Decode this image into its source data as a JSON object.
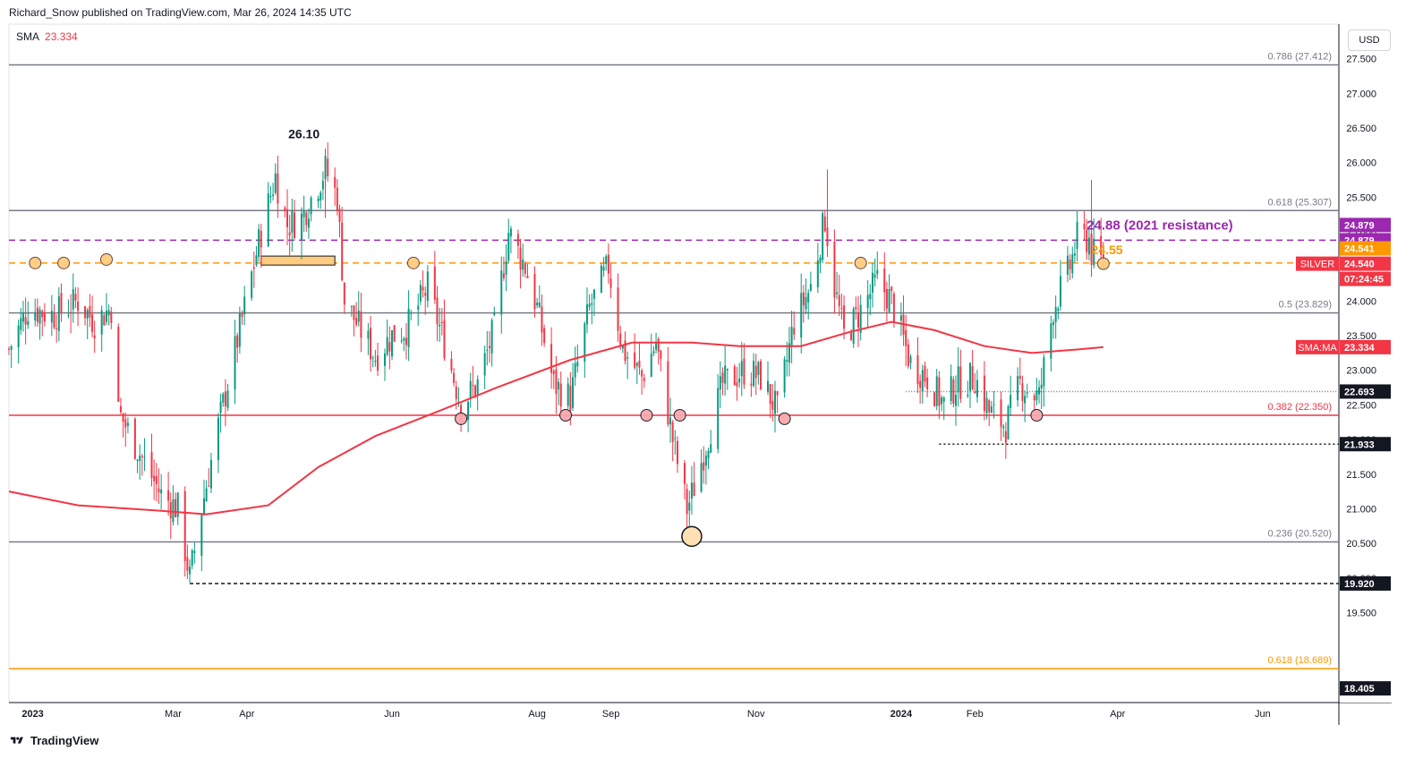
{
  "header": {
    "attribution": "Richard_Snow published on TradingView.com, Mar 26, 2024 14:35 UTC"
  },
  "indicator": {
    "name": "SMA",
    "value": "23.334"
  },
  "currency": "USD",
  "footer": {
    "brand": "TradingView"
  },
  "colors": {
    "up": "#089981",
    "down": "#f23645",
    "sma": "#f23645",
    "purple": "#9c27b0",
    "orange": "#ff9800",
    "grey": "#787b86",
    "darkline": "#131722"
  },
  "chart_data": {
    "type": "candlestick",
    "symbol": "SILVER",
    "ylim": [
      18.2,
      28.0
    ],
    "yticks": [
      "19.500",
      "20.000",
      "20.500",
      "21.000",
      "21.500",
      "22.000",
      "22.500",
      "23.000",
      "23.500",
      "24.000",
      "24.500",
      "25.000",
      "25.500",
      "26.000",
      "26.500",
      "27.000",
      "27.500"
    ],
    "xlim": [
      "2022-12-22",
      "2024-07-03"
    ],
    "xticks": [
      {
        "date": "2023-01-01",
        "label": "2023",
        "bold": true
      },
      {
        "date": "2023-03-01",
        "label": "Mar"
      },
      {
        "date": "2023-04-01",
        "label": "Apr"
      },
      {
        "date": "2023-06-01",
        "label": "Jun"
      },
      {
        "date": "2023-08-01",
        "label": "Aug"
      },
      {
        "date": "2023-09-01",
        "label": "Sep"
      },
      {
        "date": "2023-11-01",
        "label": "Nov"
      },
      {
        "date": "2024-01-01",
        "label": "2024",
        "bold": true
      },
      {
        "date": "2024-02-01",
        "label": "Feb"
      },
      {
        "date": "2024-04-01",
        "label": "Apr"
      },
      {
        "date": "2024-06-01",
        "label": "Jun"
      }
    ],
    "price_path": [
      [
        "2022-12-22",
        23.3
      ],
      [
        "2022-12-30",
        23.9
      ],
      [
        "2023-01-10",
        23.8
      ],
      [
        "2023-01-20",
        24.0
      ],
      [
        "2023-01-27",
        23.7
      ],
      [
        "2023-02-03",
        23.9
      ],
      [
        "2023-02-06",
        22.4
      ],
      [
        "2023-02-15",
        21.8
      ],
      [
        "2023-02-24",
        21.2
      ],
      [
        "2023-03-03",
        21.0
      ],
      [
        "2023-03-08",
        20.0
      ],
      [
        "2023-03-13",
        21.0
      ],
      [
        "2023-03-20",
        22.2
      ],
      [
        "2023-03-31",
        23.9
      ],
      [
        "2023-04-07",
        25.0
      ],
      [
        "2023-04-13",
        25.8
      ],
      [
        "2023-04-18",
        25.1
      ],
      [
        "2023-04-24",
        25.2
      ],
      [
        "2023-05-04",
        25.9
      ],
      [
        "2023-05-09",
        25.5
      ],
      [
        "2023-05-12",
        24.0
      ],
      [
        "2023-05-25",
        23.2
      ],
      [
        "2023-06-01",
        23.5
      ],
      [
        "2023-06-07",
        23.6
      ],
      [
        "2023-06-16",
        24.2
      ],
      [
        "2023-06-23",
        23.4
      ],
      [
        "2023-06-30",
        22.5
      ],
      [
        "2023-07-07",
        22.8
      ],
      [
        "2023-07-14",
        23.6
      ],
      [
        "2023-07-20",
        25.0
      ],
      [
        "2023-07-27",
        24.5
      ],
      [
        "2023-08-01",
        23.9
      ],
      [
        "2023-08-08",
        22.8
      ],
      [
        "2023-08-15",
        22.6
      ],
      [
        "2023-08-23",
        23.9
      ],
      [
        "2023-08-31",
        24.5
      ],
      [
        "2023-09-06",
        23.3
      ],
      [
        "2023-09-14",
        22.9
      ],
      [
        "2023-09-20",
        23.4
      ],
      [
        "2023-09-27",
        22.0
      ],
      [
        "2023-10-03",
        21.0
      ],
      [
        "2023-10-05",
        21.2
      ],
      [
        "2023-10-10",
        21.8
      ],
      [
        "2023-10-18",
        22.8
      ],
      [
        "2023-10-27",
        23.0
      ],
      [
        "2023-11-03",
        22.9
      ],
      [
        "2023-11-10",
        22.4
      ],
      [
        "2023-11-17",
        23.7
      ],
      [
        "2023-11-24",
        24.2
      ],
      [
        "2023-11-30",
        25.2
      ],
      [
        "2023-12-04",
        24.2
      ],
      [
        "2023-12-08",
        23.5
      ],
      [
        "2023-12-14",
        23.8
      ],
      [
        "2023-12-22",
        24.3
      ],
      [
        "2023-12-28",
        24.0
      ],
      [
        "2024-01-05",
        23.1
      ],
      [
        "2024-01-12",
        22.9
      ],
      [
        "2024-01-19",
        22.5
      ],
      [
        "2024-01-24",
        22.8
      ],
      [
        "2024-02-01",
        22.9
      ],
      [
        "2024-02-07",
        22.4
      ],
      [
        "2024-02-14",
        22.2
      ],
      [
        "2024-02-20",
        22.8
      ],
      [
        "2024-02-28",
        22.6
      ],
      [
        "2024-03-05",
        23.9
      ],
      [
        "2024-03-12",
        24.5
      ],
      [
        "2024-03-15",
        24.9
      ],
      [
        "2024-03-20",
        24.9
      ],
      [
        "2024-03-21",
        24.7
      ],
      [
        "2024-03-26",
        24.54
      ]
    ],
    "highlight_candles": [
      {
        "date": "2023-04-14",
        "high": 26.1
      },
      {
        "date": "2023-05-04",
        "high": 26.1
      },
      {
        "date": "2023-12-01",
        "high": 25.9
      },
      {
        "date": "2024-03-21",
        "high": 25.75
      }
    ],
    "sma_path": [
      [
        "2022-12-22",
        21.25
      ],
      [
        "2023-01-20",
        21.05
      ],
      [
        "2023-02-20",
        20.98
      ],
      [
        "2023-03-15",
        20.92
      ],
      [
        "2023-04-10",
        21.05
      ],
      [
        "2023-05-01",
        21.6
      ],
      [
        "2023-05-25",
        22.05
      ],
      [
        "2023-06-20",
        22.4
      ],
      [
        "2023-07-15",
        22.75
      ],
      [
        "2023-08-15",
        23.15
      ],
      [
        "2023-09-10",
        23.4
      ],
      [
        "2023-10-05",
        23.4
      ],
      [
        "2023-10-25",
        23.35
      ],
      [
        "2023-11-20",
        23.35
      ],
      [
        "2023-12-10",
        23.55
      ],
      [
        "2023-12-28",
        23.7
      ],
      [
        "2024-01-15",
        23.58
      ],
      [
        "2024-02-05",
        23.35
      ],
      [
        "2024-02-25",
        23.25
      ],
      [
        "2024-03-15",
        23.3
      ],
      [
        "2024-03-26",
        23.334
      ]
    ],
    "horizontal_lines": [
      {
        "price": 27.412,
        "style": "solid",
        "color": "#787b86",
        "label": "0.786 (27.412)"
      },
      {
        "price": 25.307,
        "style": "solid",
        "color": "#787b86",
        "label": "0.618 (25.307)"
      },
      {
        "price": 23.829,
        "style": "solid",
        "color": "#787b86",
        "label": "0.5 (23.829)"
      },
      {
        "price": 22.35,
        "style": "solid",
        "color": "#f23645",
        "label": "0.382 (22.350)"
      },
      {
        "price": 20.52,
        "style": "solid",
        "color": "#787b86",
        "label": "0.236 (20.520)"
      },
      {
        "price": 18.689,
        "style": "solid",
        "color": "#ff9800",
        "label": "0.618 (18.689)"
      },
      {
        "price": 24.879,
        "style": "dashed",
        "color": "#9c27b0",
        "label": ""
      },
      {
        "price": 24.55,
        "style": "dashed",
        "color": "#ff9800",
        "label": ""
      }
    ],
    "dotted_levels": [
      {
        "price": 22.693,
        "from": "2024-01-03",
        "color": "#787b86"
      },
      {
        "price": 21.933,
        "from": "2024-01-17",
        "color": "#131722"
      },
      {
        "price": 19.92,
        "from": "2023-03-08",
        "color": "#131722"
      }
    ],
    "annotations": [
      {
        "text": "26.10",
        "date": "2023-04-25",
        "price": 26.35,
        "color": "#131722"
      },
      {
        "text": "24.88 (2021 resistance)",
        "date": "2024-03-19",
        "price": 25.03,
        "color": "#9c27b0"
      },
      {
        "text": "24.55",
        "date": "2024-03-21",
        "price": 24.68,
        "color": "#ff9800"
      }
    ],
    "zone": {
      "from": "2023-04-07",
      "to": "2023-05-08",
      "low": 24.52,
      "high": 24.65
    },
    "markers": [
      {
        "date": "2023-01-02",
        "price": 24.55,
        "type": "orange"
      },
      {
        "date": "2023-01-14",
        "price": 24.55,
        "type": "orange"
      },
      {
        "date": "2023-02-01",
        "price": 24.6,
        "type": "orange"
      },
      {
        "date": "2023-06-10",
        "price": 24.55,
        "type": "orange"
      },
      {
        "date": "2023-12-15",
        "price": 24.55,
        "type": "orange"
      },
      {
        "date": "2024-03-26",
        "price": 24.54,
        "type": "orange"
      },
      {
        "date": "2023-06-30",
        "price": 22.3,
        "type": "red"
      },
      {
        "date": "2023-08-13",
        "price": 22.35,
        "type": "red"
      },
      {
        "date": "2023-09-16",
        "price": 22.35,
        "type": "red"
      },
      {
        "date": "2023-09-30",
        "price": 22.35,
        "type": "red"
      },
      {
        "date": "2023-11-13",
        "price": 22.3,
        "type": "red"
      },
      {
        "date": "2024-02-27",
        "price": 22.35,
        "type": "red"
      },
      {
        "date": "2023-10-05",
        "price": 20.6,
        "type": "big"
      }
    ],
    "price_labels": [
      {
        "price": 24.879,
        "text": "24.879",
        "bg": "#9c27b0",
        "fg": "#ffffff"
      },
      {
        "price": 24.879,
        "text": "24.879",
        "bg": "#9c27b0",
        "fg": "#ffffff",
        "offset": -1
      },
      {
        "price": 24.541,
        "text": "24.541",
        "bg": "#ff9800",
        "fg": "#ffffff",
        "offset": -1
      },
      {
        "price": 24.54,
        "text": "24.540",
        "bg": "#f23645",
        "fg": "#ffffff"
      },
      {
        "price": 24.54,
        "text": "07:24:45",
        "bg": "#f23645",
        "fg": "#ffffff",
        "offset": 1
      },
      {
        "price": 23.334,
        "text": "23.334",
        "bg": "#f23645",
        "fg": "#ffffff"
      },
      {
        "price": 22.693,
        "text": "22.693",
        "bg": "#131722",
        "fg": "#ffffff"
      },
      {
        "price": 21.933,
        "text": "21.933",
        "bg": "#131722",
        "fg": "#ffffff"
      },
      {
        "price": 19.92,
        "text": "19.920",
        "bg": "#131722",
        "fg": "#ffffff"
      },
      {
        "price": 18.405,
        "text": "18.405",
        "bg": "#131722",
        "fg": "#ffffff"
      }
    ],
    "series_tags": [
      {
        "price": 24.54,
        "text": "SILVER",
        "bg": "#f23645"
      },
      {
        "price": 23.334,
        "text": "SMA:MA",
        "bg": "#f23645"
      }
    ]
  }
}
